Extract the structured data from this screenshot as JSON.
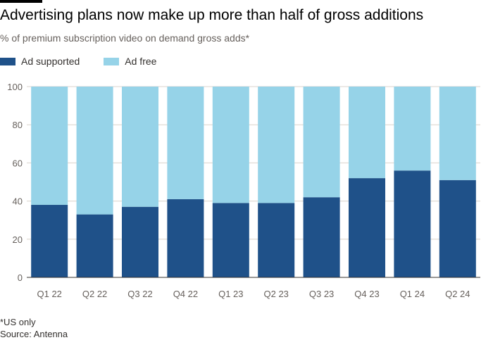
{
  "title": "Advertising plans now make up more than half of gross additions",
  "subtitle": "% of premium subscription video on demand gross adds*",
  "footnote": "*US only",
  "source": "Source: Antenna",
  "colors": {
    "ad_supported": "#1f5189",
    "ad_free": "#96d3e8",
    "grid": "#d9d3cc",
    "axis": "#33302e"
  },
  "chart_data": {
    "type": "bar",
    "stacked": true,
    "categories": [
      "Q1 22",
      "Q2 22",
      "Q3 22",
      "Q4 22",
      "Q1 23",
      "Q2 23",
      "Q3 23",
      "Q4 23",
      "Q1 24",
      "Q2 24"
    ],
    "series": [
      {
        "name": "Ad supported",
        "values": [
          38,
          33,
          37,
          41,
          39,
          39,
          42,
          52,
          56,
          51
        ]
      },
      {
        "name": "Ad free",
        "values": [
          62,
          67,
          63,
          59,
          61,
          61,
          58,
          48,
          44,
          49
        ]
      }
    ],
    "yticks": [
      0,
      20,
      40,
      60,
      80,
      100
    ],
    "ylim": [
      0,
      100
    ],
    "xlabel": "",
    "ylabel": "",
    "legend": "top-left",
    "grid": true
  }
}
